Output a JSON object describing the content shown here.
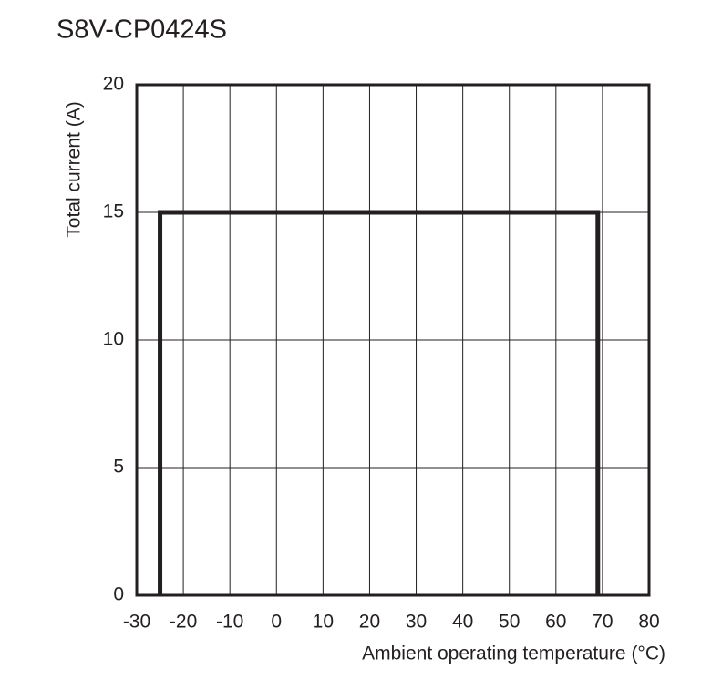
{
  "chart_data": {
    "type": "line",
    "title": "S8V-CP0424S",
    "x_label": "Ambient operating temperature (°C)",
    "y_label": "Total current (A)",
    "x": [
      -25,
      -25,
      69,
      69
    ],
    "values": [
      0,
      15,
      15,
      0
    ],
    "color": "#231f20",
    "xlim": [
      -30,
      80
    ],
    "xticks": [
      -30,
      -20,
      -10,
      0,
      10,
      20,
      30,
      40,
      50,
      60,
      70,
      80
    ],
    "ylim": [
      0,
      20
    ],
    "yticks": [
      0,
      5,
      10,
      15,
      20
    ],
    "grid": true
  }
}
